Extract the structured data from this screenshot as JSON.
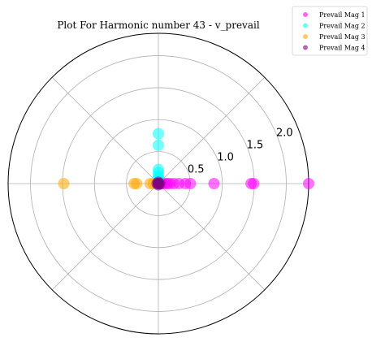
{
  "chart_data": {
    "type": "scatter",
    "projection": "polar",
    "title": "Plot For Harmonic number 43 - v_prevail",
    "radial_ticks": [
      0.5,
      1.0,
      1.5,
      2.0
    ],
    "radial_tick_labels": [
      "0.5",
      "1.0",
      "1.5",
      "2.0"
    ],
    "rmax": 2.35,
    "angular_grid_degrees": [
      0,
      45,
      90,
      135,
      180,
      225,
      270,
      315
    ],
    "grid": true,
    "legend_position": "top-right",
    "series": [
      {
        "name": "Prevail Mag 1",
        "color": "#ff00ff",
        "theta_degrees": [
          0,
          0,
          0,
          0,
          0,
          0,
          0,
          0,
          0,
          0,
          0,
          0,
          0
        ],
        "r": [
          0.06,
          0.1,
          0.14,
          0.18,
          0.24,
          0.32,
          0.42,
          0.5,
          0.87,
          1.45,
          1.49,
          2.35,
          0.04
        ]
      },
      {
        "name": "Prevail Mag 2",
        "color": "#00ffff",
        "theta_degrees": [
          90,
          90,
          90,
          90,
          90,
          90,
          90
        ],
        "r": [
          0.78,
          0.6,
          0.22,
          0.17,
          0.12,
          0.08,
          0.04
        ]
      },
      {
        "name": "Prevail Mag 3",
        "color": "#ffa500",
        "theta_degrees": [
          180,
          180,
          180,
          180,
          180
        ],
        "r": [
          1.48,
          0.38,
          0.34,
          0.13,
          0.08
        ]
      },
      {
        "name": "Prevail Mag 4",
        "color": "#800080",
        "theta_degrees": [
          0,
          90,
          180,
          270,
          0
        ],
        "r": [
          0.02,
          0.02,
          0.02,
          0.02,
          0.0
        ]
      }
    ]
  }
}
